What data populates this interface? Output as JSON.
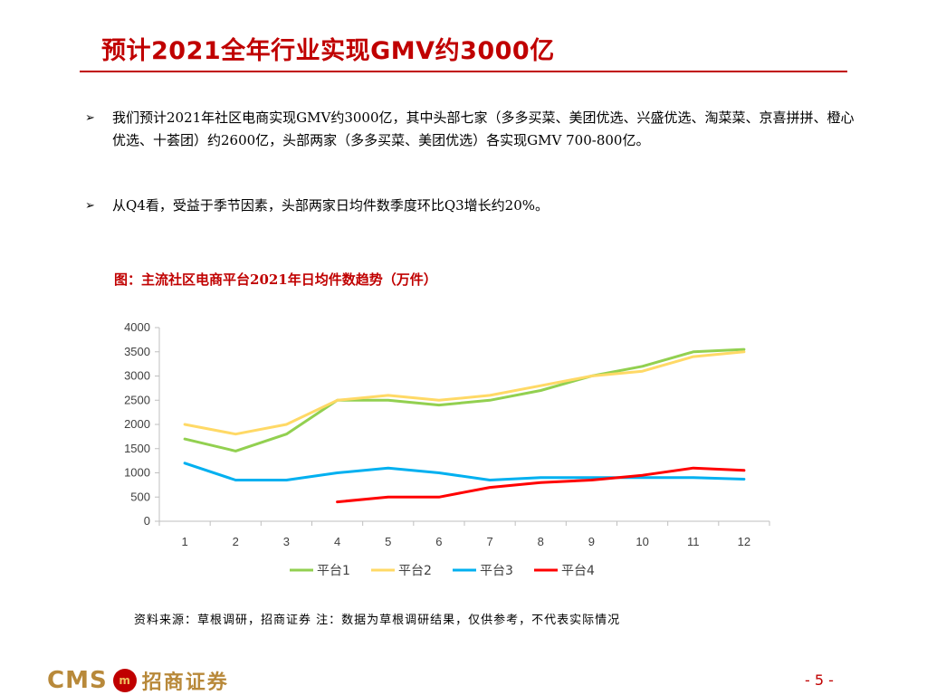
{
  "header": {
    "title": "预计2021全年行业实现GMV约3000亿"
  },
  "bullets": [
    {
      "marker": "➢",
      "text": "我们预计2021年社区电商实现GMV约3000亿，其中头部七家（多多买菜、美团优选、兴盛优选、淘菜菜、京喜拼拼、橙心优选、十荟团）约2600亿，头部两家（多多买菜、美团优选）各实现GMV 700-800亿。"
    },
    {
      "marker": "➢",
      "text": "从Q4看，受益于季节因素，头部两家日均件数季度环比Q3增长约20%。"
    }
  ],
  "figure": {
    "title": "图：主流社区电商平台2021年日均件数趋势（万件）"
  },
  "chart_data": {
    "type": "line",
    "title": "",
    "xlabel": "",
    "ylabel": "",
    "x": [
      1,
      2,
      3,
      4,
      5,
      6,
      7,
      8,
      9,
      10,
      11,
      12
    ],
    "ylim": [
      0,
      4000
    ],
    "yticks": [
      0,
      500,
      1000,
      1500,
      2000,
      2500,
      3000,
      3500,
      4000
    ],
    "grid": false,
    "legend_position": "bottom",
    "series": [
      {
        "name": "平台1",
        "color": "#92d050",
        "values": [
          1700,
          1450,
          1800,
          2500,
          2500,
          2400,
          2500,
          2700,
          3000,
          3200,
          3500,
          3550
        ]
      },
      {
        "name": "平台2",
        "color": "#ffd966",
        "values": [
          2000,
          1800,
          2000,
          2500,
          2600,
          2500,
          2600,
          2800,
          3000,
          3100,
          3400,
          3500
        ]
      },
      {
        "name": "平台3",
        "color": "#00b0f0",
        "values": [
          1200,
          850,
          850,
          1000,
          1100,
          1000,
          850,
          900,
          900,
          900,
          900,
          870
        ]
      },
      {
        "name": "平台4",
        "color": "#ff0000",
        "values": [
          null,
          null,
          null,
          400,
          500,
          500,
          700,
          800,
          850,
          950,
          1100,
          1050
        ]
      }
    ]
  },
  "source": {
    "text": "资料来源：草根调研，招商证券 注：数据为草根调研结果，仅供参考，不代表实际情况"
  },
  "footer": {
    "logo_text": "CMS",
    "logo_mark": "m",
    "company": "招商证券",
    "page": "- 5 -"
  }
}
